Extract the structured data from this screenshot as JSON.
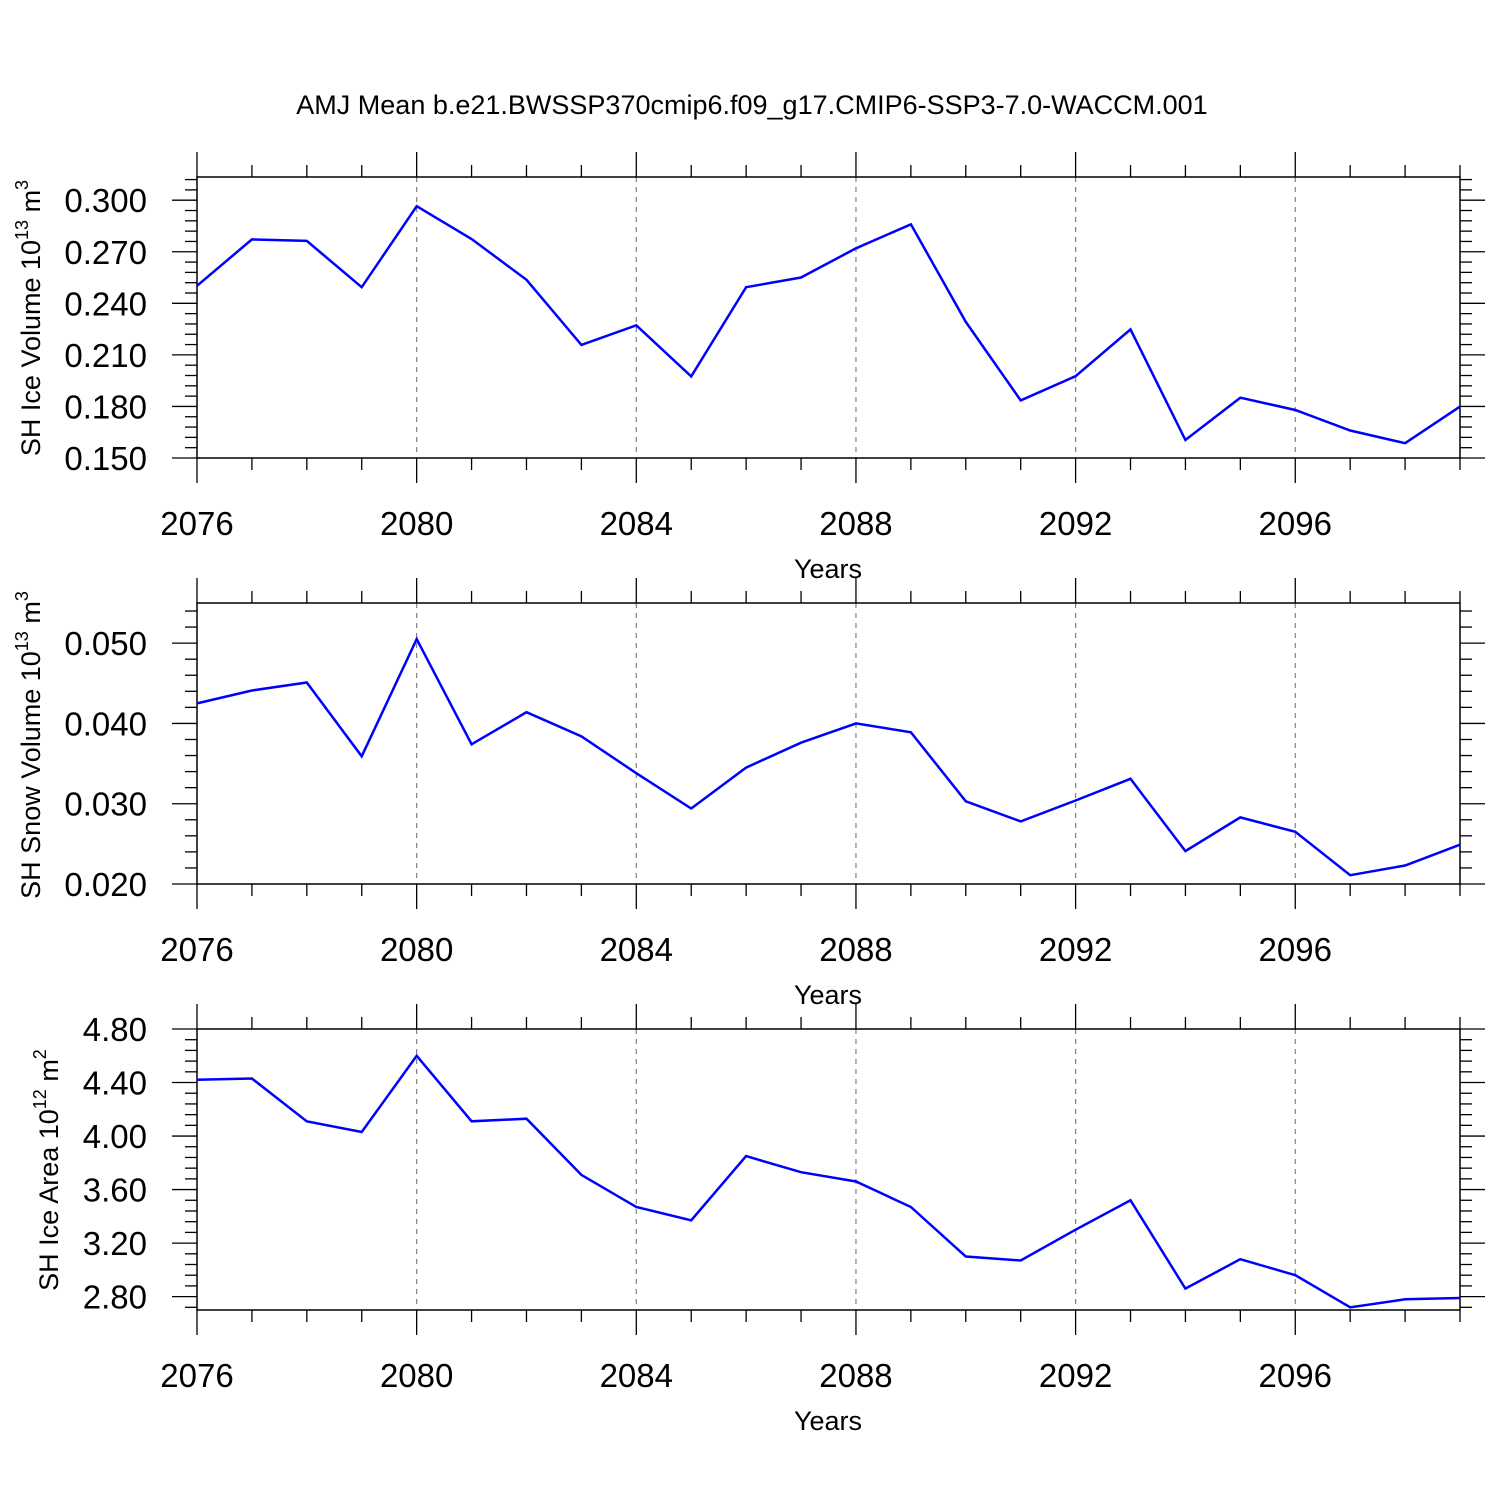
{
  "title": "AMJ Mean b.e21.BWSSP370cmip6.f09_g17.CMIP6-SSP3-7.0-WACCM.001",
  "colors": {
    "line": "#0000ff",
    "axis": "#000000",
    "grid": "#808080"
  },
  "chart_data": [
    {
      "type": "line",
      "ylabel": "SH Ice Volume 10",
      "ylabel_exp": "13",
      "ylabel_unit": " m",
      "ylabel_unit_exp": "3",
      "xlabel": "Years",
      "xlim": [
        2076,
        2099
      ],
      "ylim": [
        0.15,
        0.3135
      ],
      "xticks": [
        "2076",
        "2080",
        "2084",
        "2088",
        "2092",
        "2096"
      ],
      "yticks": [
        "0.150",
        "0.180",
        "0.210",
        "0.240",
        "0.270",
        "0.300"
      ],
      "grid": "vertical dashed at major x ticks",
      "x": [
        2076,
        2077,
        2078,
        2079,
        2080,
        2081,
        2082,
        2083,
        2084,
        2085,
        2086,
        2087,
        2088,
        2089,
        2090,
        2091,
        2092,
        2093,
        2094,
        2095,
        2096,
        2097,
        2098,
        2099
      ],
      "series": [
        {
          "values": [
            0.2502,
            0.2772,
            0.2763,
            0.2494,
            0.2965,
            0.2774,
            0.2537,
            0.2158,
            0.2272,
            0.1975,
            0.2494,
            0.255,
            0.272,
            0.286,
            0.2292,
            0.1835,
            0.1976,
            0.2248,
            0.1605,
            0.1851,
            0.1779,
            0.166,
            0.1586,
            0.1799
          ]
        }
      ]
    },
    {
      "type": "line",
      "ylabel": "SH Snow Volume 10",
      "ylabel_exp": "13",
      "ylabel_unit": " m",
      "ylabel_unit_exp": "3",
      "xlabel": "Years",
      "xlim": [
        2076,
        2099
      ],
      "ylim": [
        0.02,
        0.055
      ],
      "xticks": [
        "2076",
        "2080",
        "2084",
        "2088",
        "2092",
        "2096"
      ],
      "yticks": [
        "0.020",
        "0.030",
        "0.040",
        "0.050"
      ],
      "grid": "vertical dashed at major x ticks",
      "x": [
        2076,
        2077,
        2078,
        2079,
        2080,
        2081,
        2082,
        2083,
        2084,
        2085,
        2086,
        2087,
        2088,
        2089,
        2090,
        2091,
        2092,
        2093,
        2094,
        2095,
        2096,
        2097,
        2098,
        2099
      ],
      "series": [
        {
          "values": [
            0.0425,
            0.0441,
            0.0451,
            0.0359,
            0.0505,
            0.0374,
            0.0414,
            0.0384,
            0.0338,
            0.0294,
            0.0345,
            0.0376,
            0.04,
            0.0389,
            0.0303,
            0.0278,
            0.0304,
            0.0331,
            0.0241,
            0.0283,
            0.0265,
            0.0211,
            0.0223,
            0.0249
          ]
        }
      ]
    },
    {
      "type": "line",
      "ylabel": "SH Ice Area 10",
      "ylabel_exp": "12",
      "ylabel_unit": " m",
      "ylabel_unit_exp": "2",
      "xlabel": "Years",
      "xlim": [
        2076,
        2099
      ],
      "ylim": [
        2.7,
        4.8
      ],
      "xticks": [
        "2076",
        "2080",
        "2084",
        "2088",
        "2092",
        "2096"
      ],
      "yticks": [
        "2.80",
        "3.20",
        "3.60",
        "4.00",
        "4.40",
        "4.80"
      ],
      "grid": "vertical dashed at major x ticks",
      "x": [
        2076,
        2077,
        2078,
        2079,
        2080,
        2081,
        2082,
        2083,
        2084,
        2085,
        2086,
        2087,
        2088,
        2089,
        2090,
        2091,
        2092,
        2093,
        2094,
        2095,
        2096,
        2097,
        2098,
        2099
      ],
      "series": [
        {
          "values": [
            4.42,
            4.43,
            4.11,
            4.03,
            4.6,
            4.11,
            4.13,
            3.71,
            3.47,
            3.37,
            3.85,
            3.73,
            3.66,
            3.47,
            3.1,
            3.07,
            3.3,
            3.52,
            2.86,
            3.08,
            2.96,
            2.72,
            2.78,
            2.79
          ]
        }
      ]
    }
  ]
}
